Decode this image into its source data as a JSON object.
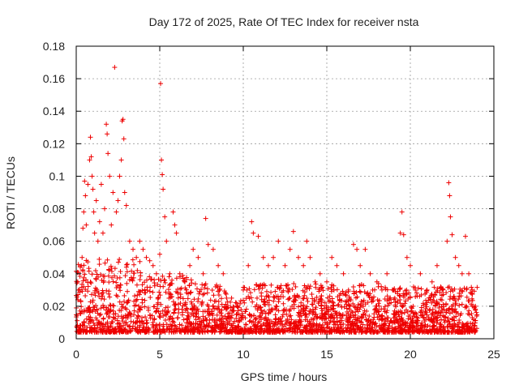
{
  "chart_data": {
    "type": "scatter",
    "title": "Day 172 of 2025, Rate Of TEC Index for receiver nsta",
    "xlabel": "GPS time / hours",
    "ylabel": "ROTI / TECUs",
    "xlim": [
      0,
      25
    ],
    "ylim": [
      0,
      0.18
    ],
    "xticks": [
      0,
      5,
      10,
      15,
      20,
      25
    ],
    "xtick_labels": [
      "0",
      "5",
      "10",
      "15",
      "20",
      "25"
    ],
    "yticks": [
      0,
      0.02,
      0.04,
      0.06,
      0.08,
      0.1,
      0.12,
      0.14,
      0.16,
      0.18
    ],
    "ytick_labels": [
      "0",
      "0.02",
      "0.04",
      "0.06",
      "0.08",
      "0.1",
      "0.12",
      "0.14",
      "0.16",
      "0.18"
    ],
    "grid": true,
    "marker": "+",
    "color": "#ee0000",
    "series": [
      {
        "name": "nsta",
        "points": [
          [
            0.1,
            0.024
          ],
          [
            0.2,
            0.03
          ],
          [
            0.3,
            0.045
          ],
          [
            0.35,
            0.05
          ],
          [
            0.4,
            0.068
          ],
          [
            0.45,
            0.078
          ],
          [
            0.5,
            0.097
          ],
          [
            0.55,
            0.088
          ],
          [
            0.6,
            0.07
          ],
          [
            0.7,
            0.095
          ],
          [
            0.8,
            0.11
          ],
          [
            0.85,
            0.124
          ],
          [
            0.9,
            0.112
          ],
          [
            0.95,
            0.1
          ],
          [
            1.0,
            0.092
          ],
          [
            1.05,
            0.078
          ],
          [
            1.1,
            0.065
          ],
          [
            1.2,
            0.085
          ],
          [
            1.3,
            0.06
          ],
          [
            1.4,
            0.072
          ],
          [
            1.5,
            0.095
          ],
          [
            1.6,
            0.065
          ],
          [
            1.7,
            0.08
          ],
          [
            1.8,
            0.132
          ],
          [
            1.85,
            0.126
          ],
          [
            1.9,
            0.114
          ],
          [
            2.0,
            0.1
          ],
          [
            2.1,
            0.07
          ],
          [
            2.2,
            0.09
          ],
          [
            2.3,
            0.167
          ],
          [
            2.4,
            0.078
          ],
          [
            2.5,
            0.085
          ],
          [
            2.6,
            0.1
          ],
          [
            2.7,
            0.11
          ],
          [
            2.75,
            0.134
          ],
          [
            2.8,
            0.135
          ],
          [
            2.85,
            0.123
          ],
          [
            2.9,
            0.09
          ],
          [
            3.0,
            0.082
          ],
          [
            3.2,
            0.06
          ],
          [
            3.4,
            0.055
          ],
          [
            3.6,
            0.05
          ],
          [
            3.8,
            0.06
          ],
          [
            4.0,
            0.055
          ],
          [
            4.2,
            0.05
          ],
          [
            4.4,
            0.048
          ],
          [
            4.6,
            0.045
          ],
          [
            4.8,
            0.04
          ],
          [
            5.0,
            0.052
          ],
          [
            5.05,
            0.157
          ],
          [
            5.1,
            0.11
          ],
          [
            5.15,
            0.101
          ],
          [
            5.2,
            0.092
          ],
          [
            5.3,
            0.075
          ],
          [
            5.4,
            0.06
          ],
          [
            5.6,
            0.04
          ],
          [
            5.8,
            0.078
          ],
          [
            5.9,
            0.07
          ],
          [
            6.0,
            0.065
          ],
          [
            6.2,
            0.04
          ],
          [
            6.5,
            0.035
          ],
          [
            6.8,
            0.045
          ],
          [
            7.0,
            0.055
          ],
          [
            7.3,
            0.05
          ],
          [
            7.6,
            0.04
          ],
          [
            7.75,
            0.074
          ],
          [
            7.9,
            0.058
          ],
          [
            8.2,
            0.055
          ],
          [
            8.5,
            0.045
          ],
          [
            8.8,
            0.04
          ],
          [
            9.0,
            0.025
          ],
          [
            9.3,
            0.025
          ],
          [
            9.6,
            0.022
          ],
          [
            10.0,
            0.03
          ],
          [
            10.3,
            0.045
          ],
          [
            10.5,
            0.072
          ],
          [
            10.6,
            0.065
          ],
          [
            10.9,
            0.063
          ],
          [
            11.2,
            0.05
          ],
          [
            11.5,
            0.045
          ],
          [
            11.8,
            0.05
          ],
          [
            12.1,
            0.06
          ],
          [
            12.5,
            0.045
          ],
          [
            12.8,
            0.055
          ],
          [
            13.0,
            0.066
          ],
          [
            13.3,
            0.05
          ],
          [
            13.6,
            0.045
          ],
          [
            13.8,
            0.06
          ],
          [
            14.0,
            0.05
          ],
          [
            14.3,
            0.035
          ],
          [
            14.6,
            0.04
          ],
          [
            15.0,
            0.035
          ],
          [
            15.3,
            0.05
          ],
          [
            15.6,
            0.045
          ],
          [
            16.0,
            0.04
          ],
          [
            16.3,
            0.03
          ],
          [
            16.6,
            0.058
          ],
          [
            16.8,
            0.055
          ],
          [
            17.0,
            0.045
          ],
          [
            17.3,
            0.055
          ],
          [
            17.6,
            0.04
          ],
          [
            18.0,
            0.035
          ],
          [
            18.3,
            0.03
          ],
          [
            18.6,
            0.04
          ],
          [
            19.0,
            0.03
          ],
          [
            19.4,
            0.065
          ],
          [
            19.5,
            0.078
          ],
          [
            19.6,
            0.064
          ],
          [
            19.8,
            0.05
          ],
          [
            20.0,
            0.045
          ],
          [
            20.3,
            0.03
          ],
          [
            20.6,
            0.04
          ],
          [
            21.0,
            0.03
          ],
          [
            21.3,
            0.035
          ],
          [
            21.6,
            0.045
          ],
          [
            21.9,
            0.03
          ],
          [
            22.2,
            0.06
          ],
          [
            22.3,
            0.096
          ],
          [
            22.35,
            0.088
          ],
          [
            22.4,
            0.075
          ],
          [
            22.5,
            0.064
          ],
          [
            22.7,
            0.05
          ],
          [
            22.9,
            0.045
          ],
          [
            23.1,
            0.04
          ],
          [
            23.3,
            0.063
          ],
          [
            23.5,
            0.04
          ],
          [
            23.7,
            0.03
          ],
          [
            23.9,
            0.02
          ]
        ]
      }
    ]
  }
}
